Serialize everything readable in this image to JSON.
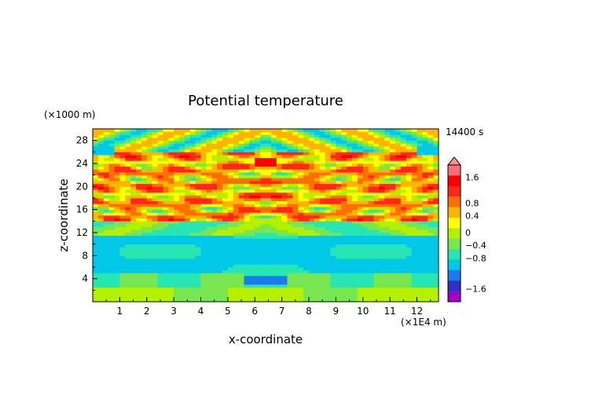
{
  "chart_data": {
    "type": "heatmap",
    "title": "Potential temperature",
    "xlabel": "x-coordinate",
    "ylabel": "z-coordinate",
    "x_units": "(×1E4 m)",
    "y_units": "(×1000 m)",
    "time_label": "14400 s",
    "xlim": [
      0,
      12.8
    ],
    "ylim": [
      0,
      30
    ],
    "x_ticks": [
      "1",
      "2",
      "3",
      "4",
      "5",
      "6",
      "7",
      "8",
      "9",
      "10",
      "11",
      "12"
    ],
    "y_ticks": [
      "4",
      "8",
      "12",
      "16",
      "20",
      "24",
      "28"
    ],
    "colorbar": {
      "labels": [
        "1.6",
        "0.8",
        "0.4",
        "0",
        "−0.4",
        "−0.8",
        "−1.6"
      ],
      "colors": [
        "#a000c8",
        "#3030c8",
        "#1e78f0",
        "#00c8e6",
        "#28e6b4",
        "#78e650",
        "#b4f000",
        "#ffff00",
        "#ffb400",
        "#ff6e00",
        "#ff2818",
        "#ff0000",
        "#ff6e78"
      ],
      "max_arrow_color": "#ff8c96"
    },
    "field_description": "Symmetric gravity-wave pattern about x≈6.4; positive (orange/red) bands between 15–26 km, negative (cyan/blue) below ~14 km."
  }
}
